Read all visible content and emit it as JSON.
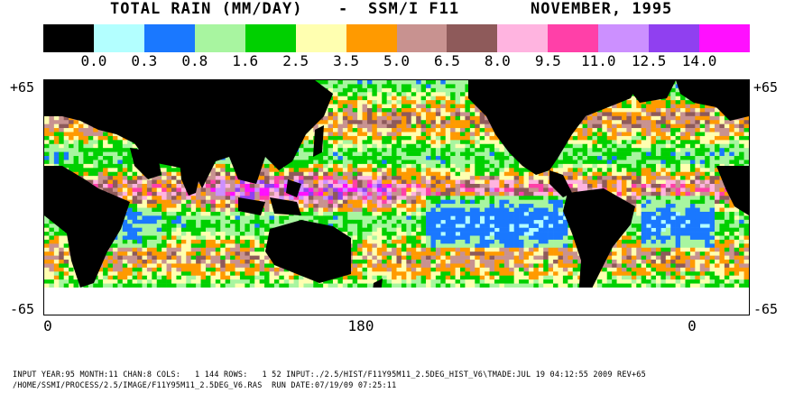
{
  "title": {
    "product": "TOTAL RAIN (MM/DAY)",
    "sep": "-",
    "sensor": "SSM/I F11",
    "period": "NOVEMBER, 1995"
  },
  "legend": {
    "colors": [
      "#000000",
      "#b3ffff",
      "#1a78ff",
      "#a8f5a0",
      "#00d000",
      "#ffffb0",
      "#ff9a00",
      "#c89290",
      "#8e5a5a",
      "#ffb4e0",
      "#ff40a8",
      "#cc90ff",
      "#9040f0",
      "#ff10ff"
    ],
    "thresholds": [
      "0.0",
      "0.3",
      "0.8",
      "1.6",
      "2.5",
      "3.5",
      "5.0",
      "6.5",
      "8.0",
      "9.5",
      "11.0",
      "12.5",
      "14.0"
    ]
  },
  "axes": {
    "lat_top": "+65",
    "lat_bottom": "-65",
    "lon_labels": [
      "0",
      "180",
      "0"
    ]
  },
  "footer": {
    "line1": "INPUT YEAR:95 MONTH:11 CHAN:8 COLS:   1 144 ROWS:   1 52 INPUT:./2.5/HIST/F11Y95M11_2.5DEG_HIST_V6\\TMADE:JUL 19 04:12:55 2009 REV+65",
    "line2": "/HOME/SSMI/PROCESS/2.5/IMAGE/F11Y95M11_2.5DEG_V6.RAS  RUN DATE:07/19/09 07:25:11"
  },
  "map_colors": {
    "land": "#000000",
    "nodata": "#ffffff"
  }
}
